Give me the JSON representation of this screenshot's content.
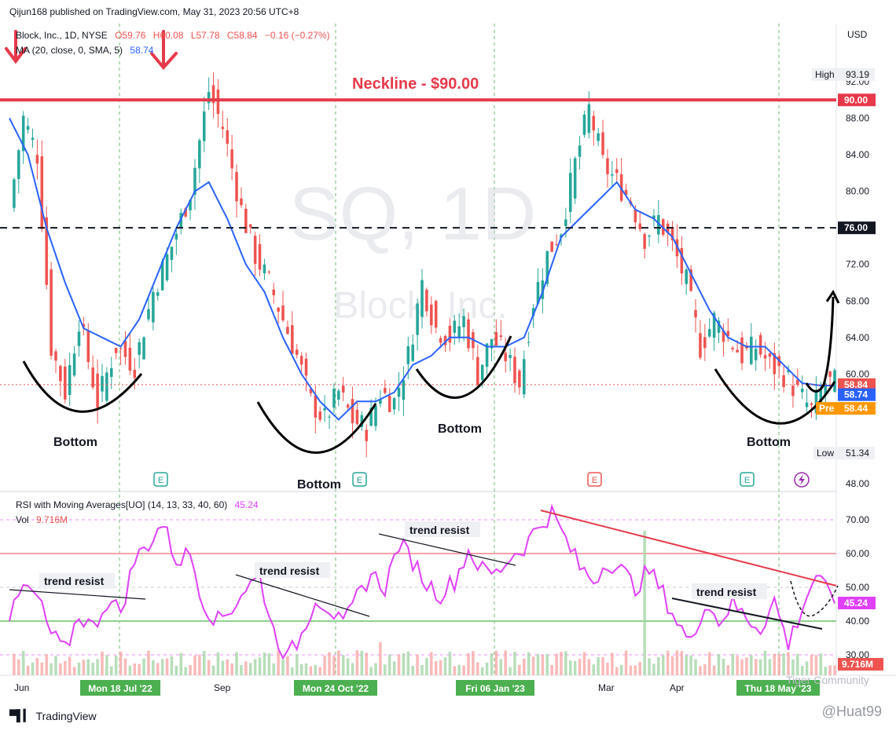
{
  "header": {
    "publish_line": "Qijun168 published on TradingView.com, May 31, 2023 20:56 UTC+8",
    "symbol_line": "Block, Inc., 1D, NYSE",
    "open": "O59.76",
    "high": "H60.08",
    "low": "L57.78",
    "close": "C58.84",
    "change": "−0.16 (−0.27%)",
    "ma_label": "MA (20, close, 0, SMA, 5)",
    "ma_value": "58.74",
    "rsi_label": "RSI with Moving Averages[UO] (14, 13, 33, 40, 60)",
    "rsi_value": "45.24",
    "vol_label": "Vol",
    "vol_value": "9.716M",
    "currency": "USD"
  },
  "footer": {
    "brand": "TradingView",
    "credit": "@Huat99",
    "community": "Tiger Community"
  },
  "colors": {
    "up": "#26a69a",
    "down": "#ef5350",
    "ma": "#2962ff",
    "neckline": "#e6394a",
    "rsi": "#e040fb",
    "rsi_upper_band": "#f5a3a8",
    "rsi_lower_band": "#8fd18f",
    "date_tag": "#4caf50"
  },
  "chart_data": [
    {
      "type": "candlestick",
      "title": "SQ, 1D",
      "watermark": "SQ, 1D",
      "watermark_sub": "Block, Inc.",
      "price_ticks": [
        "92.00",
        "88.00",
        "84.00",
        "80.00",
        "72.00",
        "68.00",
        "64.00",
        "60.00",
        "48.00"
      ],
      "ylim": [
        46.5,
        96.5
      ],
      "x_ticks": [
        "Jun",
        "Sep",
        "Mar",
        "Apr"
      ],
      "x_tags": [
        "Mon 18 Jul '22",
        "Mon 24 Oct '22",
        "Fri 06 Jan '23",
        "Thu 18 May '23"
      ],
      "price_labels": {
        "neckline": {
          "text": "90.00",
          "value": 90.0
        },
        "level_76": {
          "text": "76.00",
          "value": 76.0
        },
        "last": {
          "text": "58.84",
          "value": 58.84
        },
        "ma": {
          "text": "58.74",
          "value": 58.74
        },
        "pre_label": "Pre",
        "pre": {
          "text": "58.44",
          "value": 58.44
        },
        "high_label": "High",
        "high": {
          "text": "93.19",
          "value": 93.19
        },
        "low_label": "Low",
        "low": {
          "text": "51.34",
          "value": 51.34
        }
      },
      "annotations": {
        "neckline_text": "Neckline - $90.00",
        "bottom_labels": [
          "Bottom",
          "Bottom",
          "Bottom",
          "Bottom"
        ],
        "earnings_markers": [
          "E",
          "E",
          "E",
          "E"
        ]
      },
      "close_path": [
        [
          0,
          78
        ],
        [
          3,
          88
        ],
        [
          6,
          84
        ],
        [
          9,
          63
        ],
        [
          12,
          58
        ],
        [
          15,
          66
        ],
        [
          19,
          57
        ],
        [
          23,
          63
        ],
        [
          27,
          61
        ],
        [
          31,
          69
        ],
        [
          35,
          74
        ],
        [
          39,
          80
        ],
        [
          43,
          91
        ],
        [
          46,
          87
        ],
        [
          50,
          78
        ],
        [
          53,
          73
        ],
        [
          56,
          70
        ],
        [
          59,
          66
        ],
        [
          62,
          62
        ],
        [
          65,
          57
        ],
        [
          68,
          55
        ],
        [
          71,
          58
        ],
        [
          74,
          55
        ],
        [
          77,
          54
        ],
        [
          80,
          58
        ],
        [
          83,
          57
        ],
        [
          86,
          62
        ],
        [
          89,
          70
        ],
        [
          92,
          65
        ],
        [
          95,
          64
        ],
        [
          98,
          66
        ],
        [
          101,
          60
        ],
        [
          104,
          64
        ],
        [
          107,
          62
        ],
        [
          110,
          59
        ],
        [
          113,
          68
        ],
        [
          116,
          73
        ],
        [
          119,
          76
        ],
        [
          122,
          83
        ],
        [
          125,
          89
        ],
        [
          128,
          83
        ],
        [
          131,
          81
        ],
        [
          134,
          79
        ],
        [
          137,
          75
        ],
        [
          140,
          77
        ],
        [
          143,
          74
        ],
        [
          146,
          70
        ],
        [
          149,
          63
        ],
        [
          152,
          66
        ],
        [
          155,
          64
        ],
        [
          158,
          62
        ],
        [
          161,
          63
        ],
        [
          164,
          61
        ],
        [
          167,
          60
        ],
        [
          170,
          58
        ],
        [
          173,
          56
        ],
        [
          176,
          59
        ],
        [
          178,
          59
        ]
      ],
      "ma_path": [
        [
          0,
          88
        ],
        [
          4,
          84
        ],
        [
          8,
          76
        ],
        [
          12,
          70
        ],
        [
          16,
          65
        ],
        [
          20,
          64
        ],
        [
          24,
          63
        ],
        [
          28,
          66
        ],
        [
          32,
          71
        ],
        [
          36,
          76
        ],
        [
          40,
          80
        ],
        [
          43,
          81
        ],
        [
          47,
          77
        ],
        [
          51,
          72
        ],
        [
          55,
          69
        ],
        [
          59,
          64
        ],
        [
          63,
          60
        ],
        [
          67,
          57
        ],
        [
          71,
          55
        ],
        [
          75,
          57
        ],
        [
          79,
          57
        ],
        [
          83,
          58
        ],
        [
          87,
          61
        ],
        [
          91,
          62
        ],
        [
          95,
          64
        ],
        [
          99,
          64
        ],
        [
          103,
          63
        ],
        [
          107,
          63
        ],
        [
          111,
          64
        ],
        [
          115,
          69
        ],
        [
          119,
          75
        ],
        [
          123,
          77
        ],
        [
          127,
          79
        ],
        [
          131,
          81
        ],
        [
          135,
          78
        ],
        [
          139,
          77
        ],
        [
          143,
          75
        ],
        [
          147,
          71
        ],
        [
          151,
          67
        ],
        [
          155,
          64
        ],
        [
          159,
          63
        ],
        [
          163,
          63
        ],
        [
          167,
          61
        ],
        [
          171,
          59
        ],
        [
          175,
          58.74
        ],
        [
          178,
          58.74
        ]
      ]
    },
    {
      "type": "line",
      "title": "RSI with Moving Averages[UO]",
      "rsi_ticks": [
        "70.00",
        "60.00",
        "50.00",
        "40.00",
        "30.00"
      ],
      "ylim": [
        25,
        75
      ],
      "bands": [
        70,
        60,
        50,
        40,
        30
      ],
      "annotations": [
        "trend resist",
        "trend resist",
        "trend resist",
        "trend resist"
      ],
      "last_rsi": {
        "text": "45.24",
        "value": 45.24
      },
      "last_vol": {
        "text": "9.716M"
      },
      "rsi_path": [
        [
          0,
          40
        ],
        [
          3,
          50
        ],
        [
          6,
          47
        ],
        [
          9,
          36
        ],
        [
          12,
          31
        ],
        [
          15,
          42
        ],
        [
          18,
          38
        ],
        [
          21,
          46
        ],
        [
          24,
          43
        ],
        [
          27,
          58
        ],
        [
          30,
          63
        ],
        [
          33,
          69
        ],
        [
          36,
          58
        ],
        [
          39,
          60
        ],
        [
          42,
          45
        ],
        [
          45,
          40
        ],
        [
          48,
          44
        ],
        [
          51,
          50
        ],
        [
          54,
          53
        ],
        [
          57,
          37
        ],
        [
          60,
          29
        ],
        [
          63,
          36
        ],
        [
          66,
          47
        ],
        [
          69,
          44
        ],
        [
          72,
          38
        ],
        [
          75,
          47
        ],
        [
          78,
          54
        ],
        [
          81,
          50
        ],
        [
          84,
          63
        ],
        [
          87,
          58
        ],
        [
          90,
          51
        ],
        [
          93,
          48
        ],
        [
          96,
          52
        ],
        [
          99,
          61
        ],
        [
          102,
          55
        ],
        [
          105,
          54
        ],
        [
          108,
          59
        ],
        [
          111,
          62
        ],
        [
          114,
          68
        ],
        [
          117,
          72
        ],
        [
          120,
          64
        ],
        [
          123,
          56
        ],
        [
          126,
          52
        ],
        [
          129,
          58
        ],
        [
          132,
          55
        ],
        [
          135,
          50
        ],
        [
          138,
          55
        ],
        [
          141,
          48
        ],
        [
          144,
          40
        ],
        [
          147,
          33
        ],
        [
          150,
          46
        ],
        [
          153,
          40
        ],
        [
          156,
          45
        ],
        [
          159,
          41
        ],
        [
          162,
          38
        ],
        [
          165,
          46
        ],
        [
          168,
          33
        ],
        [
          171,
          44
        ],
        [
          174,
          54
        ],
        [
          176,
          49
        ],
        [
          178,
          45.24
        ]
      ]
    }
  ]
}
